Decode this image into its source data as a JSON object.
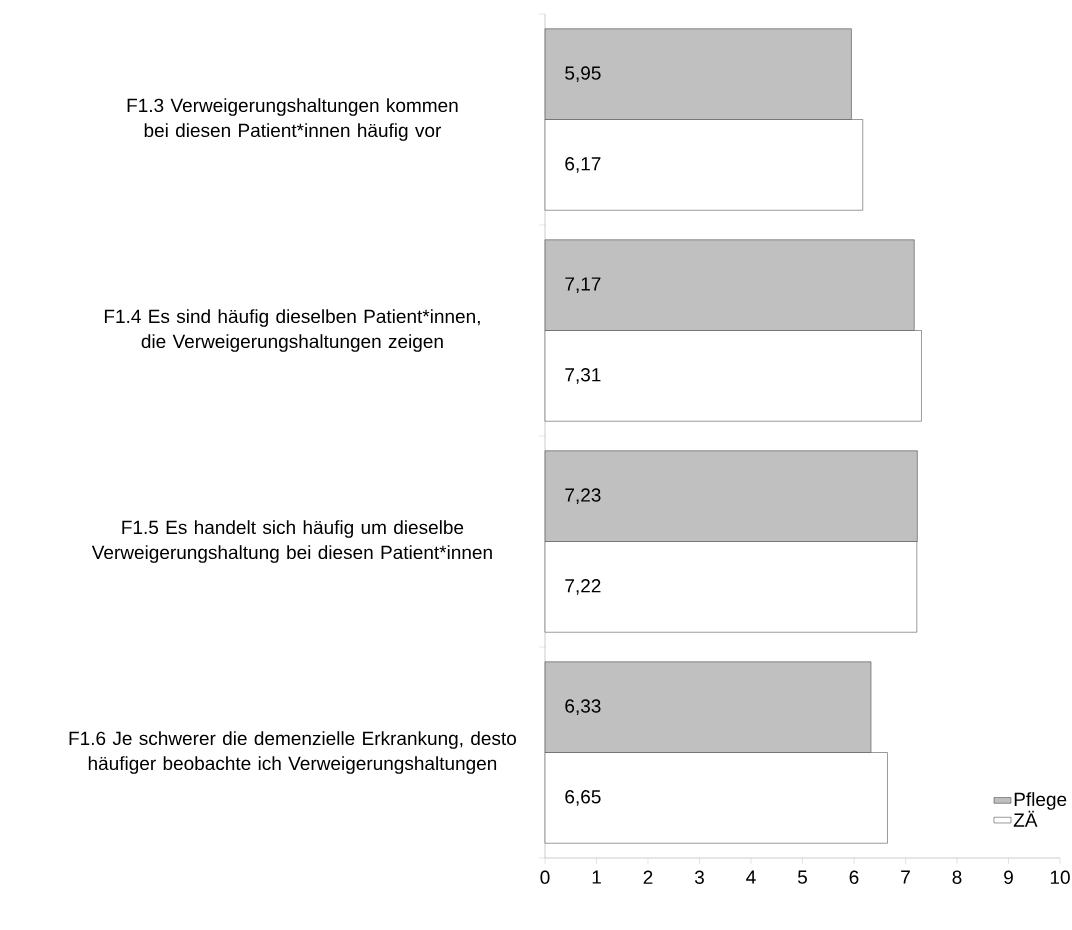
{
  "chart_data": {
    "type": "bar",
    "orientation": "horizontal",
    "categories": [
      "F1.3 Verweigerungshaltungen kommen bei diesen Patient*innen häufig vor",
      "F1.4 Es sind häufig dieselben Patient*innen, die Verweigerungshaltungen zeigen",
      "F1.5 Es handelt sich häufig um dieselbe Verweigerungshaltung bei diesen Patient*innen",
      "F1.6 Je schwerer die demenzielle Erkrankung, desto häufiger beobachte ich Verweigerungshaltungen"
    ],
    "series": [
      {
        "name": "Pflege",
        "color": "#c0c0c0",
        "values": [
          5.95,
          7.17,
          7.23,
          6.33
        ],
        "value_labels": [
          "5,95",
          "7,17",
          "7,23",
          "6,33"
        ]
      },
      {
        "name": "ZÄ",
        "color": "#ffffff",
        "values": [
          6.17,
          7.31,
          7.22,
          6.65
        ],
        "value_labels": [
          "6,17",
          "7,31",
          "7,22",
          "6,65"
        ]
      }
    ],
    "xlim": [
      0,
      10
    ],
    "xticks": [
      0,
      1,
      2,
      3,
      4,
      5,
      6,
      7,
      8,
      9,
      10
    ],
    "grid": false,
    "legend": "bottom right"
  }
}
